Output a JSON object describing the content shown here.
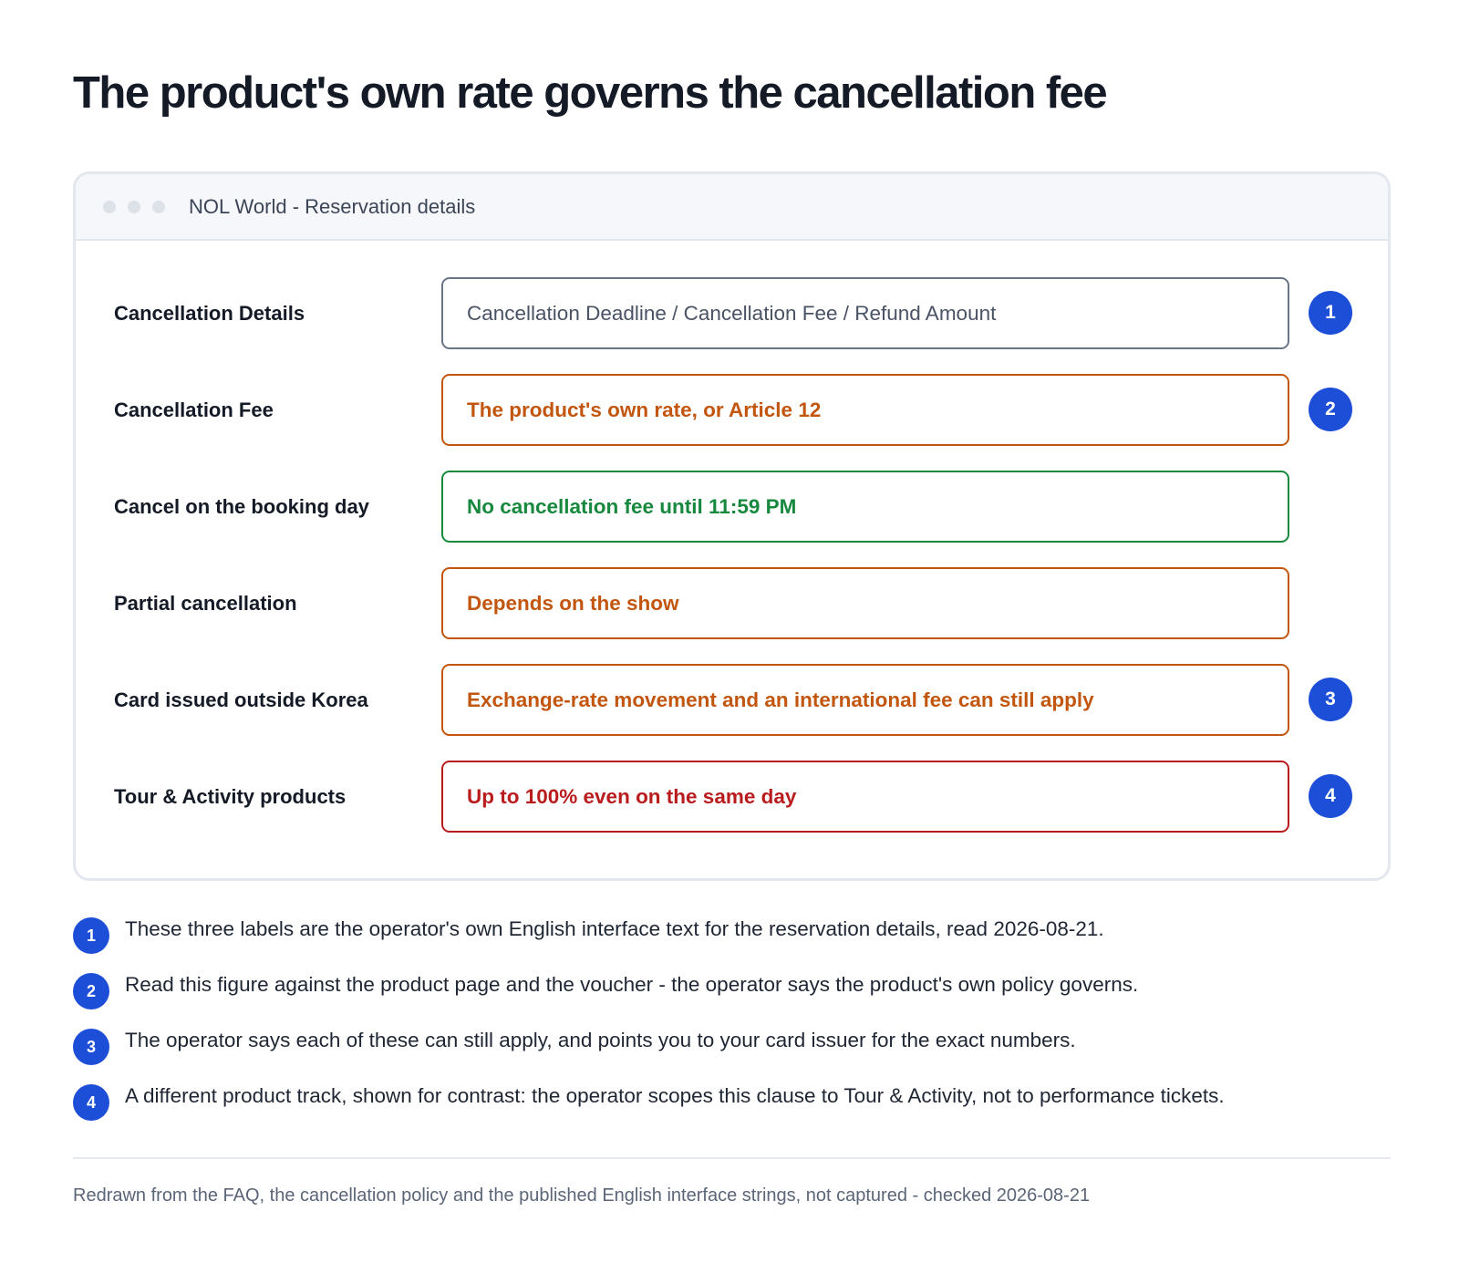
{
  "title": "The product's own rate governs the cancellation fee",
  "window": {
    "title": "NOL World - Reservation details"
  },
  "rows": [
    {
      "label": "Cancellation Details",
      "value": "Cancellation Deadline / Cancellation Fee / Refund Amount",
      "style": "neutral",
      "badge": "1"
    },
    {
      "label": "Cancellation Fee",
      "value": "The product's own rate, or Article 12",
      "style": "amber",
      "badge": "2"
    },
    {
      "label": "Cancel on the booking day",
      "value": "No cancellation fee until 11:59 PM",
      "style": "green",
      "badge": ""
    },
    {
      "label": "Partial cancellation",
      "value": "Depends on the show",
      "style": "amber",
      "badge": ""
    },
    {
      "label": "Card issued outside Korea",
      "value": "Exchange-rate movement and an international fee can still apply",
      "style": "amber",
      "badge": "3"
    },
    {
      "label": "Tour & Activity products",
      "value": "Up to 100% even on the same day",
      "style": "red",
      "badge": "4"
    }
  ],
  "notes": [
    {
      "badge": "1",
      "text": "These three labels are the operator's own English interface text for the reservation details, read 2026-08-21."
    },
    {
      "badge": "2",
      "text": "Read this figure against the product page and the voucher - the operator says the product's own policy governs."
    },
    {
      "badge": "3",
      "text": "The operator says each of these can still apply, and points you to your card issuer for the exact numbers."
    },
    {
      "badge": "4",
      "text": "A different product track, shown for contrast: the operator scopes this clause to Tour & Activity, not to performance tickets."
    }
  ],
  "footer": "Redrawn from the FAQ, the cancellation policy and the published English interface strings, not captured - checked 2026-08-21",
  "colors": {
    "badge": "#1d4ed8",
    "neutral": "#6b7588",
    "amber": "#c2560f",
    "green": "#17893e",
    "red": "#b91c1c"
  }
}
